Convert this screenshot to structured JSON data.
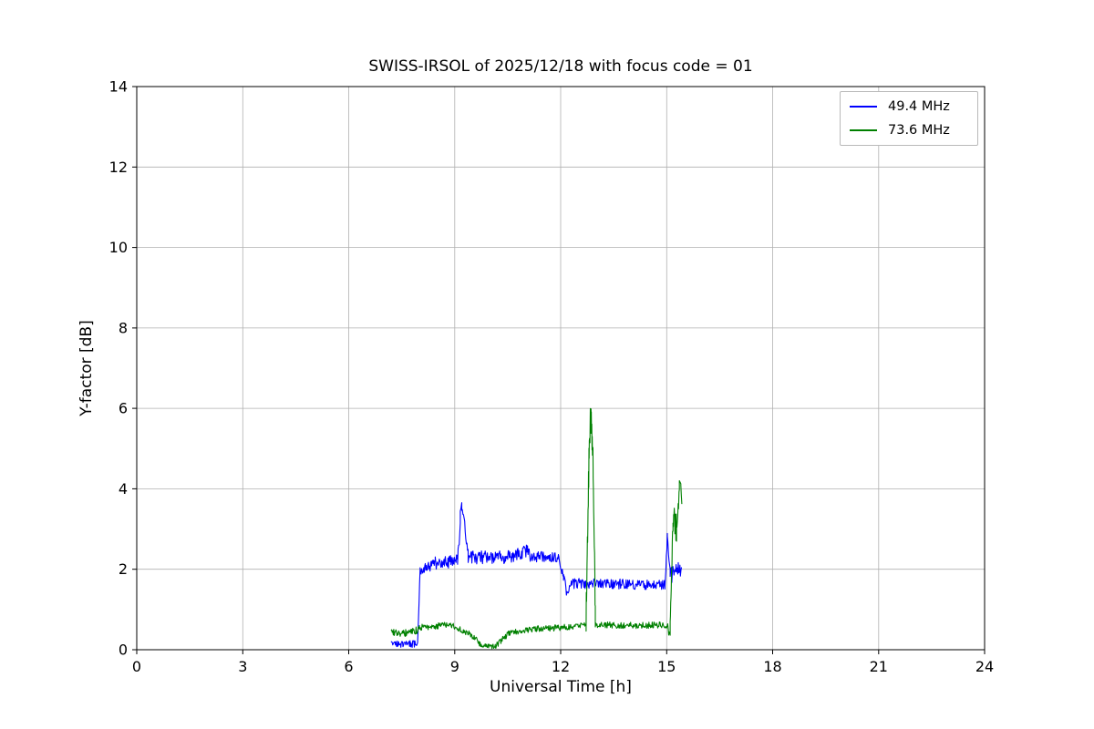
{
  "chart_data": {
    "type": "line",
    "title": "SWISS-IRSOL of 2025/12/18 with focus code = 01",
    "xlabel": "Universal Time [h]",
    "ylabel": "Y-factor [dB]",
    "xlim": [
      0,
      24
    ],
    "ylim": [
      0,
      14
    ],
    "xticks": [
      0,
      3,
      6,
      9,
      12,
      15,
      18,
      21,
      24
    ],
    "yticks": [
      0,
      2,
      4,
      6,
      8,
      10,
      12,
      14
    ],
    "grid": true,
    "grid_color": "#b0b0b0",
    "legend_position": "upper right",
    "series": [
      {
        "name": "49.4 MHz",
        "color": "#0000ff",
        "segments": [
          [
            7.2,
            7.95,
            0.12,
            0.15,
            0.09,
            50
          ],
          [
            7.95,
            8.02,
            0.15,
            1.95,
            0.06,
            6
          ],
          [
            8.02,
            8.45,
            1.95,
            2.15,
            0.13,
            30
          ],
          [
            8.45,
            9.08,
            2.15,
            2.2,
            0.16,
            45
          ],
          [
            9.08,
            9.16,
            2.2,
            3.1,
            0.15,
            6
          ],
          [
            9.16,
            9.2,
            3.4,
            3.7,
            0.08,
            3
          ],
          [
            9.2,
            9.38,
            3.6,
            2.4,
            0.15,
            12
          ],
          [
            9.38,
            10.5,
            2.3,
            2.3,
            0.17,
            75
          ],
          [
            10.5,
            11.0,
            2.3,
            2.45,
            0.18,
            34
          ],
          [
            11.0,
            11.35,
            2.45,
            2.3,
            0.2,
            24
          ],
          [
            11.35,
            11.95,
            2.3,
            2.25,
            0.15,
            40
          ],
          [
            11.95,
            12.08,
            2.25,
            1.8,
            0.1,
            9
          ],
          [
            12.08,
            12.18,
            1.8,
            1.4,
            0.12,
            7
          ],
          [
            12.18,
            12.3,
            1.4,
            1.68,
            0.1,
            8
          ],
          [
            12.3,
            14.95,
            1.65,
            1.62,
            0.13,
            170
          ],
          [
            14.95,
            15.02,
            1.62,
            2.8,
            0.12,
            6
          ],
          [
            15.02,
            15.1,
            2.75,
            2.0,
            0.15,
            6
          ],
          [
            15.1,
            15.42,
            1.85,
            2.0,
            0.22,
            22
          ]
        ]
      },
      {
        "name": "73.6 MHz",
        "color": "#008000",
        "segments": [
          [
            7.2,
            7.55,
            0.42,
            0.4,
            0.09,
            24
          ],
          [
            7.55,
            8.0,
            0.4,
            0.5,
            0.09,
            30
          ],
          [
            8.0,
            8.85,
            0.55,
            0.62,
            0.08,
            56
          ],
          [
            8.85,
            9.5,
            0.62,
            0.35,
            0.08,
            42
          ],
          [
            9.5,
            9.75,
            0.35,
            0.12,
            0.07,
            16
          ],
          [
            9.75,
            10.15,
            0.1,
            0.08,
            0.06,
            26
          ],
          [
            10.15,
            10.55,
            0.08,
            0.42,
            0.08,
            26
          ],
          [
            10.55,
            11.3,
            0.42,
            0.52,
            0.07,
            48
          ],
          [
            11.3,
            12.55,
            0.52,
            0.58,
            0.08,
            80
          ],
          [
            12.55,
            12.72,
            0.58,
            0.62,
            0.08,
            11
          ],
          [
            12.72,
            12.8,
            0.7,
            4.8,
            0.5,
            14
          ],
          [
            12.8,
            12.84,
            4.9,
            5.6,
            0.4,
            8
          ],
          [
            12.84,
            12.86,
            6.0,
            5.95,
            0.05,
            2
          ],
          [
            12.86,
            12.92,
            5.5,
            4.8,
            0.5,
            10
          ],
          [
            12.92,
            12.98,
            4.5,
            0.8,
            0.4,
            10
          ],
          [
            12.98,
            14.2,
            0.62,
            0.6,
            0.08,
            78
          ],
          [
            14.2,
            15.0,
            0.6,
            0.62,
            0.08,
            52
          ],
          [
            15.0,
            15.1,
            0.62,
            0.35,
            0.12,
            8
          ],
          [
            15.1,
            15.18,
            0.4,
            3.2,
            0.35,
            12
          ],
          [
            15.18,
            15.28,
            3.2,
            3.0,
            0.4,
            12
          ],
          [
            15.28,
            15.36,
            3.1,
            4.0,
            0.25,
            8
          ],
          [
            15.36,
            15.4,
            4.2,
            4.15,
            0.05,
            2
          ],
          [
            15.4,
            15.43,
            4.0,
            3.7,
            0.1,
            3
          ]
        ]
      }
    ]
  }
}
